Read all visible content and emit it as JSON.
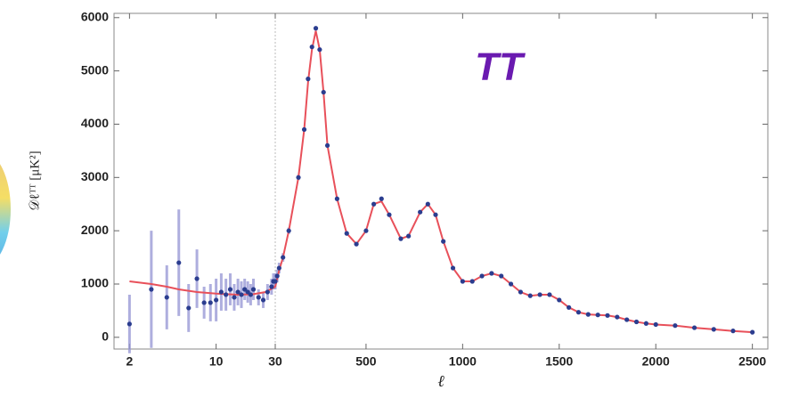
{
  "chart_data": {
    "type": "scatter",
    "annotation": "TT",
    "y_label": "𝒟ℓᵀᵀ [μK²]",
    "x_label": "ℓ",
    "xscale": "log-linear",
    "xbreak": 30,
    "xlim": [
      1.5,
      2580
    ],
    "ylim": [
      -220,
      6080
    ],
    "xticks": [
      2,
      10,
      30,
      500,
      1000,
      1500,
      2000,
      2500
    ],
    "yticks": [
      0,
      1000,
      2000,
      3000,
      4000,
      5000,
      6000
    ],
    "points": {
      "color": "#2b3d8f",
      "error_color": "#9a9ad6",
      "x": [
        2,
        3,
        4,
        5,
        6,
        7,
        8,
        9,
        10,
        11,
        12,
        13,
        14,
        15,
        16,
        17,
        18,
        19,
        20,
        22,
        24,
        26,
        28,
        29,
        30,
        40,
        50,
        70,
        100,
        150,
        180,
        200,
        220,
        240,
        260,
        280,
        300,
        350,
        400,
        450,
        500,
        540,
        580,
        620,
        680,
        720,
        780,
        820,
        860,
        900,
        950,
        1000,
        1050,
        1100,
        1150,
        1200,
        1250,
        1300,
        1350,
        1400,
        1450,
        1500,
        1550,
        1600,
        1650,
        1700,
        1750,
        1800,
        1850,
        1900,
        1950,
        2000,
        2100,
        2200,
        2300,
        2400,
        2500
      ],
      "values": [
        250,
        900,
        750,
        1400,
        550,
        1100,
        650,
        650,
        700,
        850,
        800,
        900,
        750,
        850,
        800,
        900,
        850,
        800,
        900,
        750,
        700,
        850,
        950,
        1050,
        1050,
        1150,
        1300,
        1500,
        2000,
        3000,
        3900,
        4850,
        5450,
        5800,
        5400,
        4600,
        3600,
        2600,
        1950,
        1750,
        2000,
        2500,
        2600,
        2300,
        1850,
        1900,
        2350,
        2500,
        2300,
        1800,
        1300,
        1050,
        1050,
        1150,
        1200,
        1150,
        1000,
        850,
        780,
        800,
        800,
        700,
        560,
        470,
        430,
        420,
        410,
        380,
        330,
        290,
        260,
        240,
        220,
        180,
        150,
        120,
        95
      ],
      "errors": [
        550,
        1100,
        600,
        1000,
        450,
        550,
        300,
        350,
        400,
        350,
        300,
        300,
        250,
        250,
        250,
        200,
        200,
        200,
        200,
        150,
        150,
        150,
        150,
        150,
        150,
        120,
        100,
        80,
        60,
        50,
        40,
        40,
        40,
        40,
        40,
        40,
        40,
        40,
        40,
        40,
        40,
        40,
        40,
        40,
        40,
        40,
        40,
        40,
        40,
        40,
        40,
        40,
        40,
        40,
        40,
        40,
        40,
        40,
        40,
        40,
        40,
        40,
        40,
        40,
        40,
        40,
        40,
        40,
        40,
        40,
        40,
        40,
        40,
        40,
        40,
        40,
        40
      ]
    },
    "model": {
      "color": "#e8505a",
      "x": [
        2,
        3,
        4,
        5,
        7,
        10,
        15,
        20,
        25,
        30,
        40,
        50,
        70,
        100,
        150,
        180,
        200,
        220,
        240,
        260,
        280,
        300,
        350,
        400,
        450,
        500,
        540,
        580,
        620,
        680,
        720,
        780,
        820,
        860,
        900,
        950,
        1000,
        1050,
        1100,
        1150,
        1200,
        1250,
        1300,
        1350,
        1400,
        1450,
        1500,
        1550,
        1600,
        1650,
        1700,
        1750,
        1800,
        1850,
        1900,
        1950,
        2000,
        2100,
        2200,
        2300,
        2400,
        2500
      ],
      "values": [
        1050,
        1000,
        950,
        900,
        850,
        820,
        800,
        810,
        850,
        950,
        1100,
        1250,
        1500,
        2000,
        3000,
        3900,
        4800,
        5400,
        5750,
        5400,
        4600,
        3600,
        2600,
        1950,
        1750,
        2000,
        2500,
        2550,
        2300,
        1850,
        1900,
        2350,
        2500,
        2300,
        1800,
        1300,
        1050,
        1050,
        1150,
        1200,
        1150,
        1000,
        850,
        780,
        800,
        800,
        700,
        560,
        470,
        430,
        420,
        410,
        380,
        330,
        290,
        260,
        240,
        220,
        180,
        150,
        120,
        95
      ]
    }
  }
}
